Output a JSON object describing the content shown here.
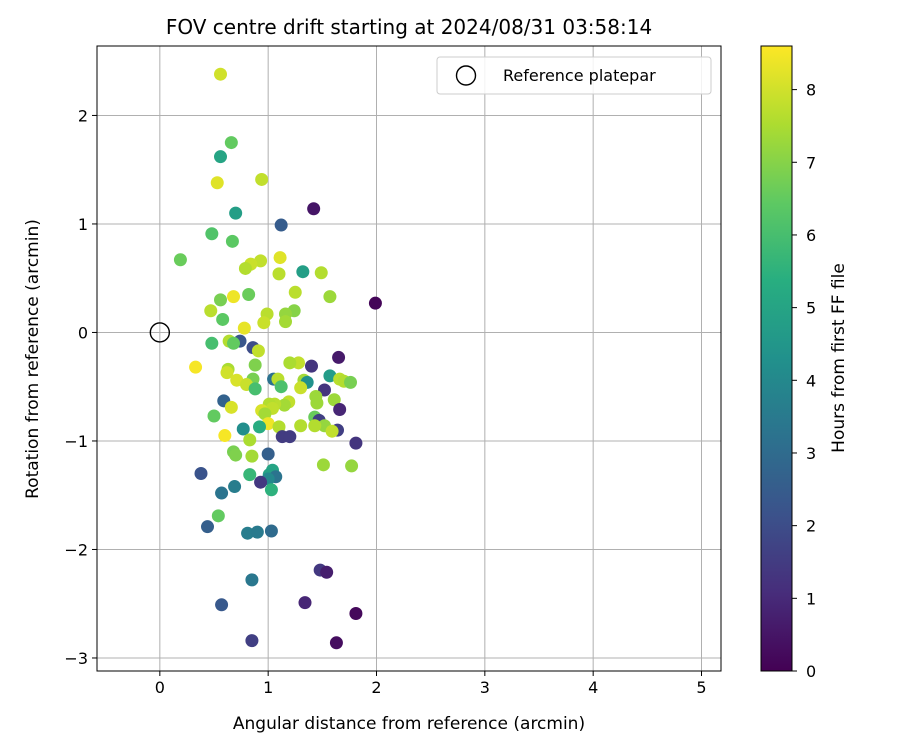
{
  "chart_data": {
    "type": "scatter",
    "title": "FOV centre drift starting at 2024/08/31 03:58:14",
    "xlabel": "Angular distance from reference (arcmin)",
    "ylabel": "Rotation from reference (arcmin)",
    "xlim": [
      -0.58,
      5.18
    ],
    "ylim": [
      -3.12,
      2.64
    ],
    "xticks": [
      0,
      1,
      2,
      3,
      4,
      5
    ],
    "yticks": [
      -3,
      -2,
      -1,
      0,
      1,
      2
    ],
    "grid": true,
    "legend": {
      "placement": "top-right",
      "entries": [
        "Reference platepar"
      ]
    },
    "reference_point": {
      "x": 0,
      "y": 0
    },
    "colorbar": {
      "label": "Hours from first FF file",
      "colormap": "viridis",
      "range": [
        0,
        8.6
      ],
      "ticks": [
        0,
        1,
        2,
        3,
        4,
        5,
        6,
        7,
        8
      ]
    },
    "points": [
      {
        "x": 0.56,
        "y": 2.38,
        "c": 8.0
      },
      {
        "x": 0.66,
        "y": 1.75,
        "c": 6.5
      },
      {
        "x": 0.56,
        "y": 1.62,
        "c": 5.0
      },
      {
        "x": 0.94,
        "y": 1.41,
        "c": 7.8
      },
      {
        "x": 0.53,
        "y": 1.38,
        "c": 8.2
      },
      {
        "x": 1.42,
        "y": 1.14,
        "c": 0.5
      },
      {
        "x": 0.7,
        "y": 1.1,
        "c": 4.8
      },
      {
        "x": 1.12,
        "y": 0.99,
        "c": 2.5
      },
      {
        "x": 0.48,
        "y": 0.91,
        "c": 6.2
      },
      {
        "x": 0.67,
        "y": 0.84,
        "c": 6.4
      },
      {
        "x": 0.19,
        "y": 0.67,
        "c": 6.6
      },
      {
        "x": 1.11,
        "y": 0.69,
        "c": 8.2
      },
      {
        "x": 0.93,
        "y": 0.66,
        "c": 7.8
      },
      {
        "x": 0.84,
        "y": 0.63,
        "c": 7.9
      },
      {
        "x": 0.79,
        "y": 0.59,
        "c": 7.6
      },
      {
        "x": 1.32,
        "y": 0.56,
        "c": 4.8
      },
      {
        "x": 1.49,
        "y": 0.55,
        "c": 7.6
      },
      {
        "x": 1.1,
        "y": 0.54,
        "c": 7.7
      },
      {
        "x": 1.25,
        "y": 0.37,
        "c": 7.7
      },
      {
        "x": 0.82,
        "y": 0.35,
        "c": 6.6
      },
      {
        "x": 0.56,
        "y": 0.3,
        "c": 6.8
      },
      {
        "x": 1.57,
        "y": 0.33,
        "c": 7.3
      },
      {
        "x": 0.68,
        "y": 0.33,
        "c": 8.4
      },
      {
        "x": 1.99,
        "y": 0.27,
        "c": 0.1
      },
      {
        "x": 0.47,
        "y": 0.2,
        "c": 7.7
      },
      {
        "x": 1.24,
        "y": 0.2,
        "c": 7.0
      },
      {
        "x": 1.16,
        "y": 0.17,
        "c": 7.2
      },
      {
        "x": 0.99,
        "y": 0.17,
        "c": 7.7
      },
      {
        "x": 0.58,
        "y": 0.12,
        "c": 6.4
      },
      {
        "x": 1.16,
        "y": 0.1,
        "c": 7.4
      },
      {
        "x": 0.96,
        "y": 0.09,
        "c": 7.9
      },
      {
        "x": 0.78,
        "y": 0.04,
        "c": 8.3
      },
      {
        "x": 0.64,
        "y": -0.08,
        "c": 7.6
      },
      {
        "x": 0.74,
        "y": -0.08,
        "c": 2.3
      },
      {
        "x": 0.48,
        "y": -0.1,
        "c": 6.0
      },
      {
        "x": 0.68,
        "y": -0.1,
        "c": 6.5
      },
      {
        "x": 0.86,
        "y": -0.14,
        "c": 2.0
      },
      {
        "x": 0.91,
        "y": -0.17,
        "c": 7.8
      },
      {
        "x": 1.65,
        "y": -0.23,
        "c": 0.6
      },
      {
        "x": 1.28,
        "y": -0.28,
        "c": 7.8
      },
      {
        "x": 1.2,
        "y": -0.28,
        "c": 7.5
      },
      {
        "x": 1.4,
        "y": -0.31,
        "c": 1.3
      },
      {
        "x": 0.88,
        "y": -0.3,
        "c": 6.9
      },
      {
        "x": 0.63,
        "y": -0.34,
        "c": 7.5
      },
      {
        "x": 0.62,
        "y": -0.37,
        "c": 8.0
      },
      {
        "x": 0.33,
        "y": -0.32,
        "c": 8.5
      },
      {
        "x": 1.57,
        "y": -0.4,
        "c": 4.7
      },
      {
        "x": 1.05,
        "y": -0.43,
        "c": 3.2
      },
      {
        "x": 1.09,
        "y": -0.43,
        "c": 7.7
      },
      {
        "x": 1.33,
        "y": -0.44,
        "c": 7.4
      },
      {
        "x": 1.66,
        "y": -0.43,
        "c": 7.7
      },
      {
        "x": 1.7,
        "y": -0.45,
        "c": 7.6
      },
      {
        "x": 1.36,
        "y": -0.46,
        "c": 4.3
      },
      {
        "x": 1.76,
        "y": -0.46,
        "c": 6.8
      },
      {
        "x": 0.71,
        "y": -0.44,
        "c": 8.1
      },
      {
        "x": 0.86,
        "y": -0.43,
        "c": 6.8
      },
      {
        "x": 0.8,
        "y": -0.48,
        "c": 7.9
      },
      {
        "x": 1.3,
        "y": -0.51,
        "c": 7.9
      },
      {
        "x": 1.12,
        "y": -0.5,
        "c": 6.1
      },
      {
        "x": 0.88,
        "y": -0.52,
        "c": 6.0
      },
      {
        "x": 1.52,
        "y": -0.53,
        "c": 1.3
      },
      {
        "x": 1.44,
        "y": -0.59,
        "c": 7.3
      },
      {
        "x": 0.59,
        "y": -0.63,
        "c": 2.7
      },
      {
        "x": 1.61,
        "y": -0.62,
        "c": 7.3
      },
      {
        "x": 1.45,
        "y": -0.65,
        "c": 7.3
      },
      {
        "x": 1.19,
        "y": -0.64,
        "c": 7.8
      },
      {
        "x": 1.15,
        "y": -0.67,
        "c": 7.4
      },
      {
        "x": 1.06,
        "y": -0.66,
        "c": 7.7
      },
      {
        "x": 1.01,
        "y": -0.66,
        "c": 7.6
      },
      {
        "x": 0.66,
        "y": -0.69,
        "c": 8.1
      },
      {
        "x": 1.04,
        "y": -0.7,
        "c": 7.8
      },
      {
        "x": 1.66,
        "y": -0.71,
        "c": 0.9
      },
      {
        "x": 0.94,
        "y": -0.72,
        "c": 8.1
      },
      {
        "x": 0.97,
        "y": -0.75,
        "c": 7.4
      },
      {
        "x": 0.5,
        "y": -0.77,
        "c": 6.5
      },
      {
        "x": 1.43,
        "y": -0.78,
        "c": 6.6
      },
      {
        "x": 1.47,
        "y": -0.81,
        "c": 1.6
      },
      {
        "x": 1.0,
        "y": -0.84,
        "c": 8.4
      },
      {
        "x": 0.92,
        "y": -0.87,
        "c": 5.3
      },
      {
        "x": 1.52,
        "y": -0.86,
        "c": 7.2
      },
      {
        "x": 1.3,
        "y": -0.86,
        "c": 7.6
      },
      {
        "x": 1.43,
        "y": -0.86,
        "c": 7.6
      },
      {
        "x": 1.1,
        "y": -0.87,
        "c": 7.6
      },
      {
        "x": 1.64,
        "y": -0.9,
        "c": 1.6
      },
      {
        "x": 1.59,
        "y": -0.91,
        "c": 7.8
      },
      {
        "x": 0.77,
        "y": -0.89,
        "c": 4.2
      },
      {
        "x": 1.13,
        "y": -0.96,
        "c": 1.5
      },
      {
        "x": 1.2,
        "y": -0.96,
        "c": 1.5
      },
      {
        "x": 0.6,
        "y": -0.95,
        "c": 8.5
      },
      {
        "x": 0.83,
        "y": -0.99,
        "c": 7.5
      },
      {
        "x": 1.81,
        "y": -1.02,
        "c": 1.3
      },
      {
        "x": 0.68,
        "y": -1.1,
        "c": 6.8
      },
      {
        "x": 0.7,
        "y": -1.13,
        "c": 6.9
      },
      {
        "x": 0.85,
        "y": -1.14,
        "c": 7.4
      },
      {
        "x": 1.0,
        "y": -1.12,
        "c": 2.6
      },
      {
        "x": 1.51,
        "y": -1.22,
        "c": 7.3
      },
      {
        "x": 1.77,
        "y": -1.23,
        "c": 7.2
      },
      {
        "x": 1.04,
        "y": -1.27,
        "c": 5.0
      },
      {
        "x": 0.38,
        "y": -1.3,
        "c": 2.2
      },
      {
        "x": 1.01,
        "y": -1.31,
        "c": 4.9
      },
      {
        "x": 0.83,
        "y": -1.31,
        "c": 5.7
      },
      {
        "x": 1.07,
        "y": -1.33,
        "c": 3.3
      },
      {
        "x": 1.0,
        "y": -1.35,
        "c": 4.0
      },
      {
        "x": 0.93,
        "y": -1.38,
        "c": 1.4
      },
      {
        "x": 0.69,
        "y": -1.42,
        "c": 3.6
      },
      {
        "x": 1.03,
        "y": -1.45,
        "c": 5.5
      },
      {
        "x": 0.57,
        "y": -1.48,
        "c": 3.3
      },
      {
        "x": 0.54,
        "y": -1.69,
        "c": 6.5
      },
      {
        "x": 0.44,
        "y": -1.79,
        "c": 2.6
      },
      {
        "x": 0.81,
        "y": -1.85,
        "c": 3.6
      },
      {
        "x": 0.9,
        "y": -1.84,
        "c": 3.5
      },
      {
        "x": 1.03,
        "y": -1.83,
        "c": 3.0
      },
      {
        "x": 1.48,
        "y": -2.19,
        "c": 1.4
      },
      {
        "x": 1.54,
        "y": -2.21,
        "c": 0.7
      },
      {
        "x": 0.85,
        "y": -2.28,
        "c": 3.4
      },
      {
        "x": 1.34,
        "y": -2.49,
        "c": 0.9
      },
      {
        "x": 0.57,
        "y": -2.51,
        "c": 2.4
      },
      {
        "x": 1.81,
        "y": -2.59,
        "c": 0.2
      },
      {
        "x": 0.85,
        "y": -2.84,
        "c": 1.6
      },
      {
        "x": 1.63,
        "y": -2.86,
        "c": 0.3
      }
    ]
  }
}
